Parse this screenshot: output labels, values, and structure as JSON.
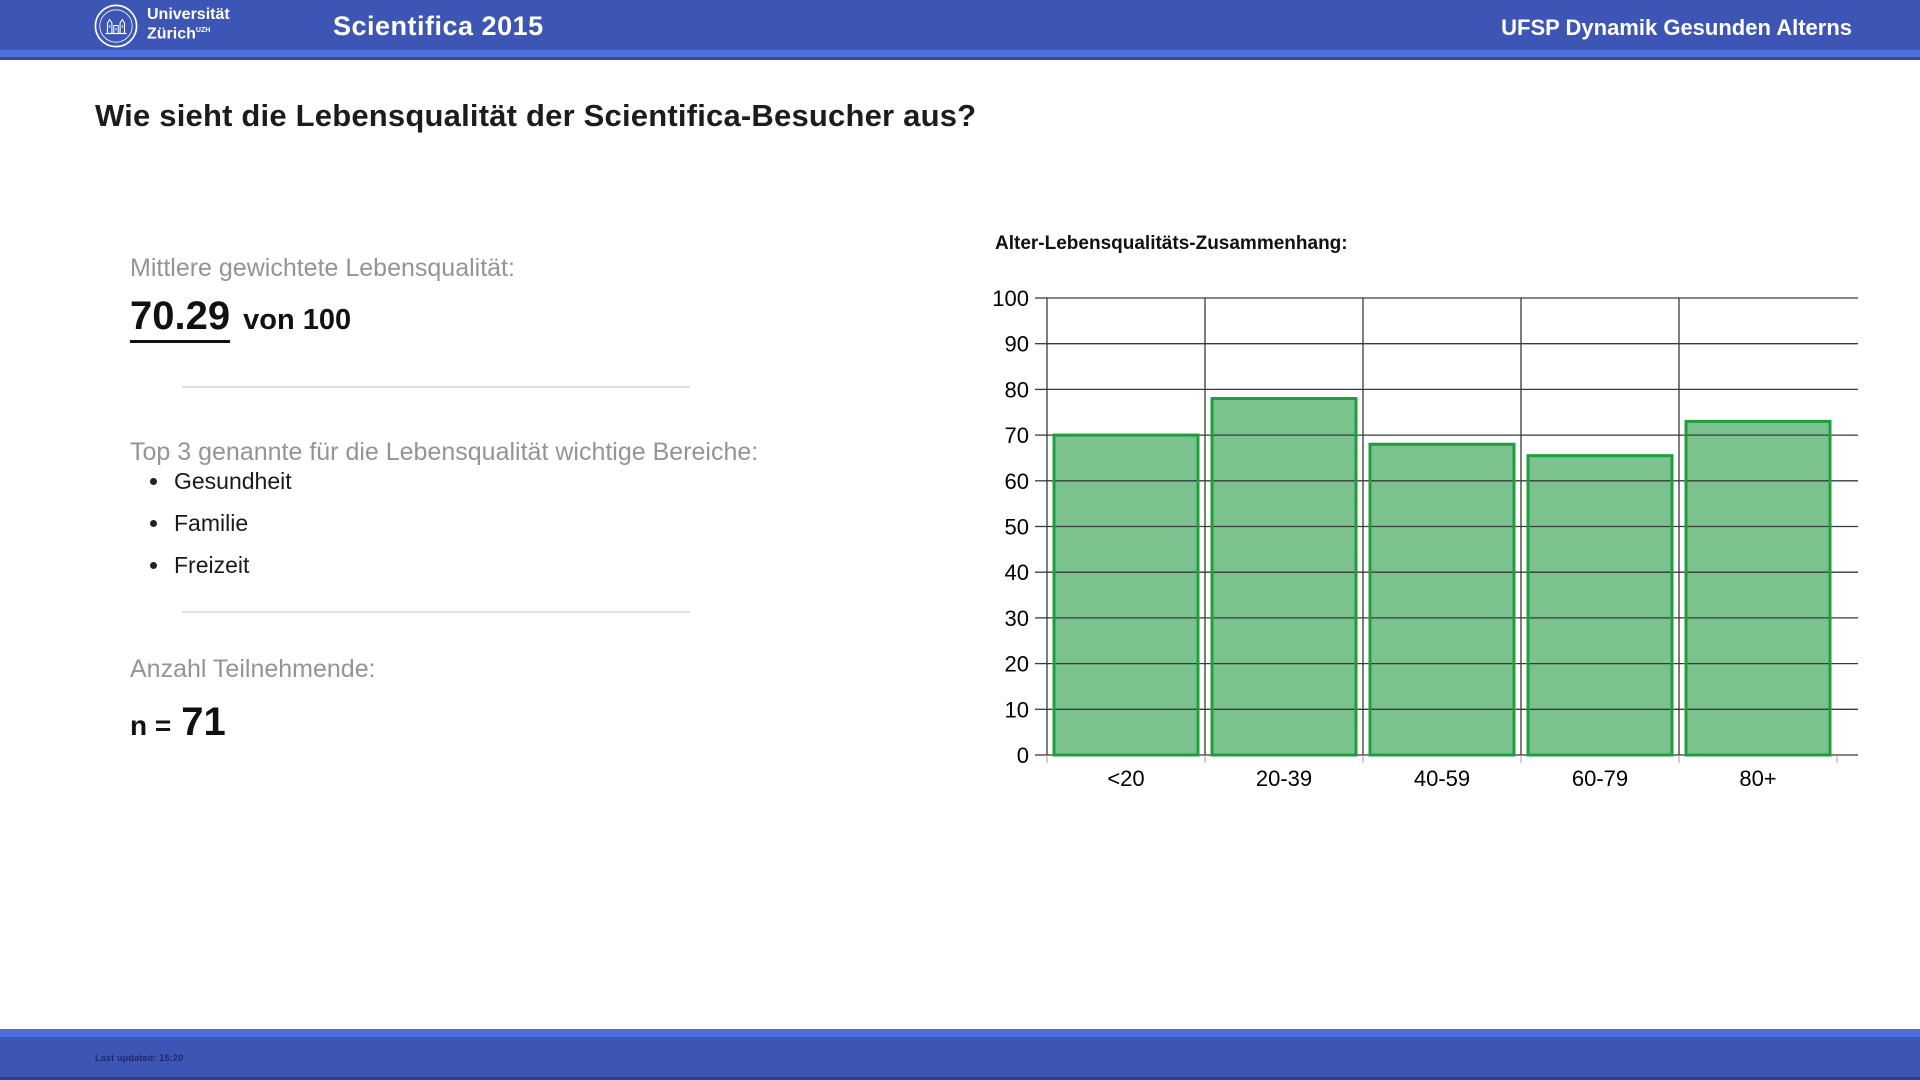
{
  "header": {
    "logo_line1": "Universität",
    "logo_line2": "Zürich",
    "logo_superscript": "UZH",
    "title": "Scientifica 2015",
    "right_text": "UFSP Dynamik Gesunden Alterns"
  },
  "heading": "Wie sieht die Lebensqualität der Scientifica-Besucher aus?",
  "stats": {
    "mean_label": "Mittlere gewichtete Lebensqualität:",
    "mean_value": "70.29",
    "mean_suffix": "von 100",
    "top3_label": "Top 3 genannte für die Lebensqualität wichtige Bereiche:",
    "top3_items": [
      "Gesundheit",
      "Familie",
      "Freizeit"
    ],
    "participants_label": "Anzahl Teilnehmende:",
    "participants_prefix": "n =",
    "participants_value": "71"
  },
  "chart_data": {
    "type": "bar",
    "title": "Alter-Lebensqualitäts-Zusammenhang:",
    "categories": [
      "<20",
      "20-39",
      "40-59",
      "60-79",
      "80+"
    ],
    "values": [
      70,
      78,
      68,
      65.5,
      73
    ],
    "xlabel": "",
    "ylabel": "",
    "ylim": [
      0,
      100
    ],
    "ytick_step": 10,
    "grid": true,
    "legend_position": "none",
    "bar_fill": "#7CC28F",
    "bar_border": "#1F9E3E",
    "grid_color": "#3a3a3a"
  },
  "footer": {
    "last_updated": "Last updated: 15:20"
  },
  "colors": {
    "header_blue": "#3D55B4",
    "stripe_blue": "#4D6FD8",
    "footer_edge_blue": "#2C3E8E"
  }
}
